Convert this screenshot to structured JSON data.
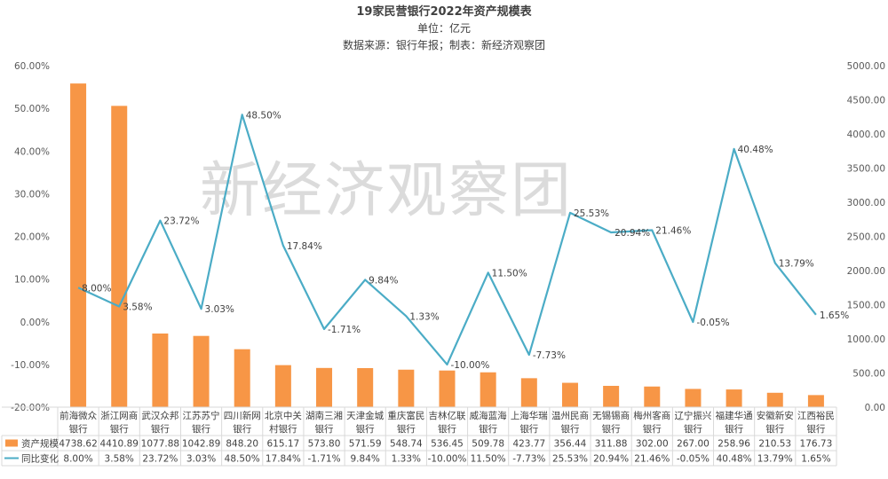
{
  "chart_data": {
    "type": "bar",
    "title": "19家民营银行2022年资产规模表",
    "subtitle_unit": "单位：亿元",
    "subtitle_source": "数据来源：银行年报；制表：新经济观察团",
    "watermark": "新经济观察团",
    "categories": [
      [
        "前海微众",
        "银行"
      ],
      [
        "浙江网商",
        "银行"
      ],
      [
        "武汉众邦",
        "银行"
      ],
      [
        "江苏苏宁",
        "银行"
      ],
      [
        "四川新网",
        "银行"
      ],
      [
        "北京中关",
        "村银行"
      ],
      [
        "湖南三湘",
        "银行"
      ],
      [
        "天津金城",
        "银行"
      ],
      [
        "重庆富民",
        "银行"
      ],
      [
        "吉林亿联",
        "银行"
      ],
      [
        "威海蓝海",
        "银行"
      ],
      [
        "上海华瑞",
        "银行"
      ],
      [
        "温州民商",
        "银行"
      ],
      [
        "无锡锡商",
        "银行"
      ],
      [
        "梅州客商",
        "银行"
      ],
      [
        "辽宁振兴",
        "银行"
      ],
      [
        "福建华通",
        "银行"
      ],
      [
        "安徽新安",
        "银行"
      ],
      [
        "江西裕民",
        "银行"
      ]
    ],
    "series": [
      {
        "name": "资产规模",
        "type": "bar",
        "axis": "right",
        "color": "#F79646",
        "values": [
          4738.62,
          4410.89,
          1077.88,
          1042.89,
          848.2,
          615.17,
          573.8,
          571.59,
          548.74,
          536.45,
          509.78,
          423.77,
          356.44,
          311.88,
          302.0,
          267.0,
          258.96,
          210.53,
          176.73
        ],
        "value_labels": [
          "4738.62",
          "4410.89",
          "1077.88",
          "1042.89",
          "848.20",
          "615.17",
          "573.80",
          "571.59",
          "548.74",
          "536.45",
          "509.78",
          "423.77",
          "356.44",
          "311.88",
          "302.00",
          "267.00",
          "258.96",
          "210.53",
          "176.73"
        ]
      },
      {
        "name": "同比变化",
        "type": "line",
        "axis": "left",
        "color": "#4BACC6",
        "values": [
          8.0,
          3.58,
          23.72,
          3.03,
          48.5,
          17.84,
          -1.71,
          9.84,
          1.33,
          -10.0,
          11.5,
          -7.73,
          25.53,
          20.94,
          21.46,
          -0.05,
          40.48,
          13.79,
          1.65
        ],
        "value_labels": [
          "8.00%",
          "3.58%",
          "23.72%",
          "3.03%",
          "48.50%",
          "17.84%",
          "-1.71%",
          "9.84%",
          "1.33%",
          "-10.00%",
          "11.50%",
          "-7.73%",
          "25.53%",
          "20.94%",
          "21.46%",
          "-0.05%",
          "40.48%",
          "13.79%",
          "1.65%"
        ]
      }
    ],
    "y_left": {
      "range": [
        -20,
        60
      ],
      "ticks": [
        60,
        50,
        40,
        30,
        20,
        10,
        0,
        -10,
        -20
      ],
      "tick_labels": [
        "60.00%",
        "50.00%",
        "40.00%",
        "30.00%",
        "20.00%",
        "10.00%",
        "0.00%",
        "-10.00%",
        "-20.00%"
      ]
    },
    "y_right": {
      "range": [
        0,
        5000
      ],
      "ticks": [
        5000,
        4500,
        4000,
        3500,
        3000,
        2500,
        2000,
        1500,
        1000,
        500,
        0
      ],
      "tick_labels": [
        "5000.00",
        "4500.00",
        "4000.00",
        "3500.00",
        "3000.00",
        "2500.00",
        "2000.00",
        "1500.00",
        "1000.00",
        "500.00",
        "0.00"
      ]
    },
    "grid": false,
    "legend_placement": "data-table-left"
  }
}
